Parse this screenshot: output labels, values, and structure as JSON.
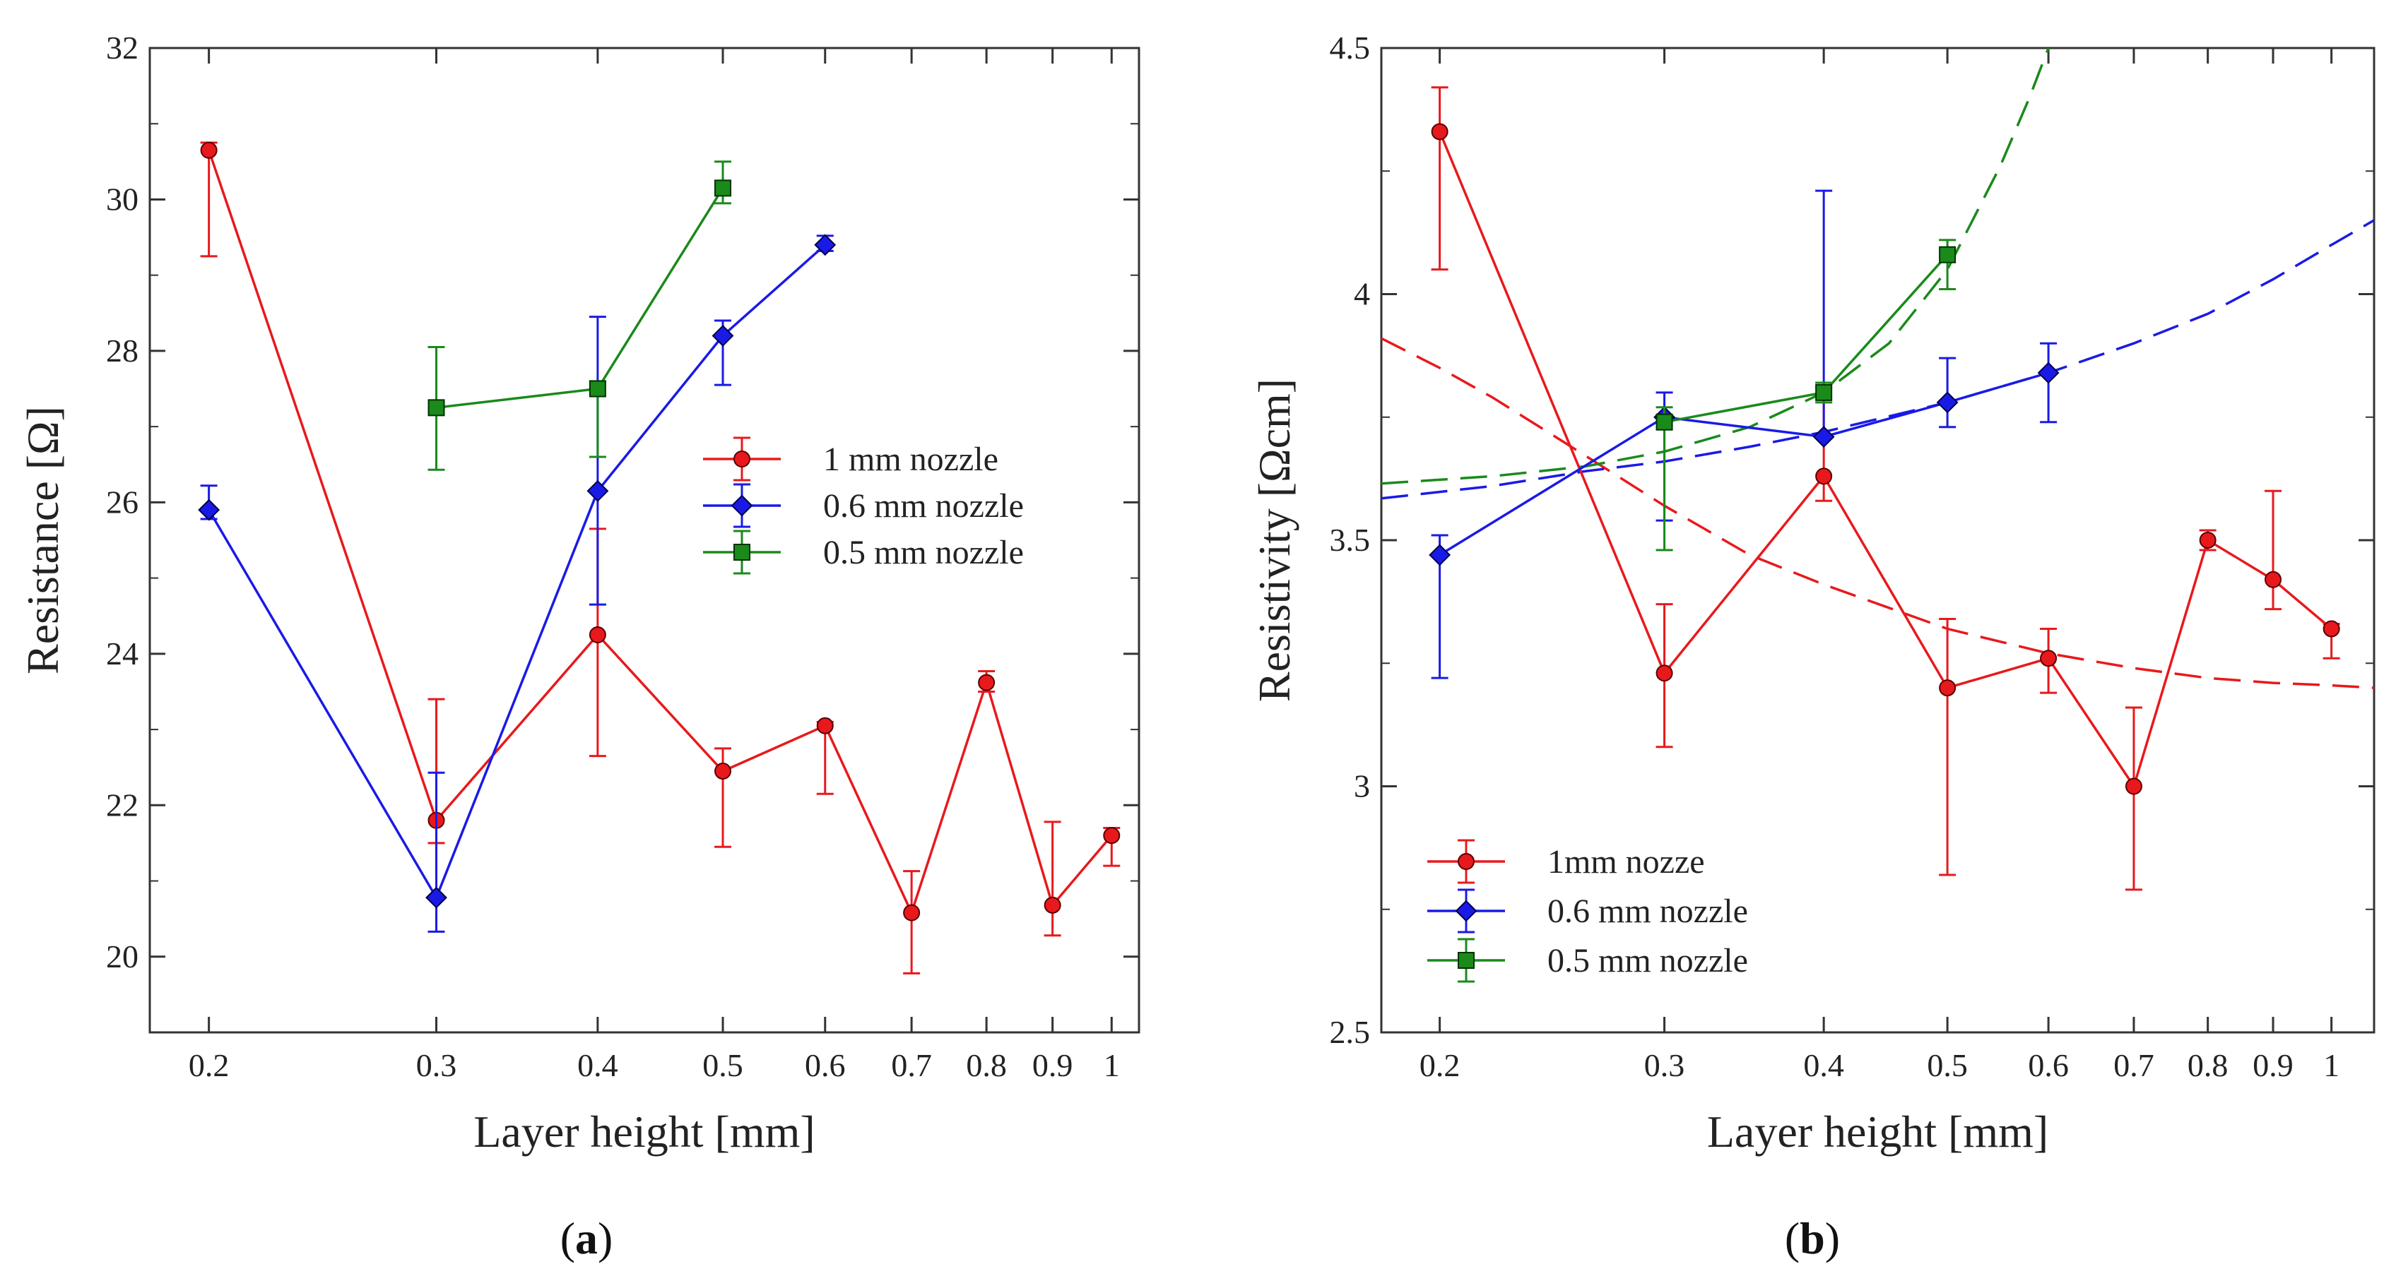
{
  "chart_data": [
    {
      "type": "line",
      "panel": "(a)",
      "panel_letter": "a",
      "xlabel": "Layer height [mm]",
      "ylabel": "Resistance [Ω]",
      "xscale": "log",
      "xlim": [
        0.18,
        1.05
      ],
      "ylim": [
        19,
        32
      ],
      "xticks": [
        0.2,
        0.3,
        0.4,
        0.5,
        0.6,
        0.7,
        0.8,
        0.9,
        1
      ],
      "xtick_labels": [
        "0.2",
        "0.3",
        "0.4",
        "0.5",
        "0.6",
        "0.7",
        "0.8",
        "0.9",
        "1"
      ],
      "yticks": [
        20,
        22,
        24,
        26,
        28,
        30,
        32
      ],
      "ytick_labels": [
        "20",
        "22",
        "24",
        "26",
        "28",
        "30",
        "32"
      ],
      "legend_position": "center-right",
      "series": [
        {
          "name": "1 mm nozzle",
          "color": "#e8191c",
          "marker": "circle",
          "x": [
            0.2,
            0.3,
            0.4,
            0.5,
            0.6,
            0.7,
            0.8,
            0.9,
            1.0
          ],
          "y": [
            30.65,
            21.8,
            24.25,
            22.45,
            23.05,
            20.58,
            23.62,
            20.68,
            21.6
          ],
          "err_low": [
            1.4,
            0.3,
            1.6,
            1.0,
            0.9,
            0.8,
            0.12,
            0.4,
            0.4
          ],
          "err_high": [
            0.1,
            1.6,
            1.4,
            0.3,
            0.05,
            0.55,
            0.15,
            1.1,
            0.1
          ]
        },
        {
          "name": "0.6 mm nozzle",
          "color": "#1a1ae6",
          "marker": "diamond",
          "x": [
            0.2,
            0.3,
            0.4,
            0.5,
            0.6
          ],
          "y": [
            25.9,
            20.78,
            26.15,
            28.2,
            29.4
          ],
          "err_low": [
            0.12,
            0.45,
            1.5,
            0.65,
            0.08
          ],
          "err_high": [
            0.32,
            1.65,
            2.3,
            0.2,
            0.12
          ]
        },
        {
          "name": "0.5 mm nozzle",
          "color": "#1a8a1a",
          "marker": "square",
          "x": [
            0.3,
            0.4,
            0.5
          ],
          "y": [
            27.25,
            27.5,
            30.15
          ],
          "err_low": [
            0.82,
            0.9,
            0.2
          ],
          "err_high": [
            0.8,
            0.1,
            0.35
          ]
        }
      ]
    },
    {
      "type": "line",
      "panel": "(b)",
      "panel_letter": "b",
      "xlabel": "Layer height [mm]",
      "ylabel": "Resistivity [Ωcm]",
      "xscale": "log",
      "xlim": [
        0.18,
        1.08
      ],
      "ylim": [
        2.5,
        4.5
      ],
      "xticks": [
        0.2,
        0.3,
        0.4,
        0.5,
        0.6,
        0.7,
        0.8,
        0.9,
        1
      ],
      "xtick_labels": [
        "0.2",
        "0.3",
        "0.4",
        "0.5",
        "0.6",
        "0.7",
        "0.8",
        "0.9",
        "1"
      ],
      "yticks": [
        2.5,
        3,
        3.5,
        4,
        4.5
      ],
      "ytick_labels": [
        "2.5",
        "3",
        "3.5",
        "4",
        "4.5"
      ],
      "legend_position": "bottom-left",
      "series": [
        {
          "name": "1mm nozze",
          "color": "#e8191c",
          "marker": "circle",
          "x": [
            0.2,
            0.3,
            0.4,
            0.5,
            0.6,
            0.7,
            0.8,
            0.9,
            1.0
          ],
          "y": [
            4.33,
            3.23,
            3.63,
            3.2,
            3.26,
            3.0,
            3.5,
            3.42,
            3.32
          ],
          "err_low": [
            0.28,
            0.15,
            0.05,
            0.38,
            0.07,
            0.21,
            0.02,
            0.06,
            0.06
          ],
          "err_high": [
            0.09,
            0.14,
            0.18,
            0.14,
            0.06,
            0.16,
            0.02,
            0.18,
            0.01
          ]
        },
        {
          "name": "0.6 mm nozzle",
          "color": "#1a1ae6",
          "marker": "diamond",
          "x": [
            0.2,
            0.3,
            0.4,
            0.5,
            0.6
          ],
          "y": [
            3.47,
            3.75,
            3.71,
            3.78,
            3.84
          ],
          "err_low": [
            0.25,
            0.21,
            0.0,
            0.05,
            0.1
          ],
          "err_high": [
            0.04,
            0.05,
            0.5,
            0.09,
            0.06
          ]
        },
        {
          "name": "0.5 mm nozzle",
          "color": "#1a8a1a",
          "marker": "square",
          "x": [
            0.3,
            0.4,
            0.5
          ],
          "y": [
            3.74,
            3.8,
            4.08
          ],
          "err_low": [
            0.26,
            0.02,
            0.07
          ],
          "err_high": [
            0.03,
            0.02,
            0.03
          ]
        }
      ],
      "trend_curves": [
        {
          "name": "red-trend",
          "color": "#e8191c",
          "x": [
            0.18,
            0.2,
            0.22,
            0.25,
            0.3,
            0.35,
            0.4,
            0.5,
            0.6,
            0.7,
            0.8,
            0.9,
            1.0,
            1.08
          ],
          "y": [
            3.91,
            3.85,
            3.79,
            3.7,
            3.57,
            3.47,
            3.41,
            3.32,
            3.27,
            3.24,
            3.22,
            3.21,
            3.205,
            3.2
          ]
        },
        {
          "name": "blue-trend",
          "color": "#1a1ae6",
          "x": [
            0.18,
            0.22,
            0.26,
            0.3,
            0.35,
            0.4,
            0.5,
            0.6,
            0.7,
            0.8,
            0.9,
            1.0,
            1.08
          ],
          "y": [
            3.585,
            3.61,
            3.64,
            3.66,
            3.69,
            3.72,
            3.78,
            3.84,
            3.9,
            3.96,
            4.03,
            4.1,
            4.15
          ]
        },
        {
          "name": "green-trend",
          "color": "#1a8a1a",
          "x": [
            0.18,
            0.22,
            0.26,
            0.3,
            0.35,
            0.4,
            0.45,
            0.5,
            0.55,
            0.58,
            0.6
          ],
          "y": [
            3.615,
            3.63,
            3.65,
            3.68,
            3.73,
            3.8,
            3.9,
            4.05,
            4.26,
            4.4,
            4.5
          ]
        }
      ]
    }
  ]
}
